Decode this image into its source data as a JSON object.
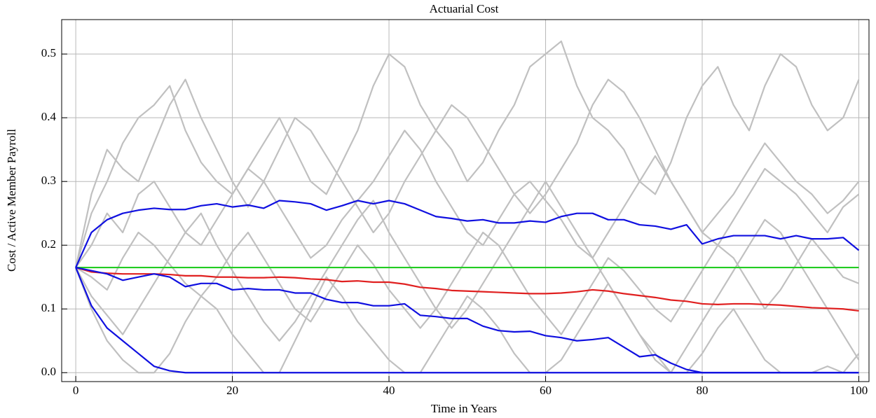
{
  "chart_data": {
    "type": "line",
    "title": "Actuarial Cost",
    "xlabel": "Time in Years",
    "ylabel": "Cost / Active Member Payroll",
    "grid": true,
    "xlim": [
      -1.8,
      101.3
    ],
    "ylim": [
      -0.014,
      0.554
    ],
    "xticks": [
      0,
      20,
      40,
      60,
      80,
      100
    ],
    "yticks": [
      {
        "value": 0,
        "label": "0.0"
      },
      0.1,
      0.2,
      0.3,
      0.4,
      0.5
    ],
    "x": [
      0,
      2,
      4,
      6,
      8,
      10,
      12,
      14,
      16,
      18,
      20,
      22,
      24,
      26,
      28,
      30,
      32,
      34,
      36,
      38,
      40,
      42,
      44,
      46,
      48,
      50,
      52,
      54,
      56,
      58,
      60,
      62,
      64,
      66,
      68,
      70,
      72,
      74,
      76,
      78,
      80,
      82,
      84,
      86,
      88,
      90,
      92,
      94,
      96,
      98,
      100
    ],
    "series": [
      {
        "color": "#c0c0c0",
        "values": [
          0.165,
          0.25,
          0.3,
          0.36,
          0.4,
          0.42,
          0.45,
          0.38,
          0.33,
          0.3,
          0.28,
          0.32,
          0.36,
          0.4,
          0.35,
          0.3,
          0.28,
          0.33,
          0.38,
          0.45,
          0.5,
          0.48,
          0.42,
          0.38,
          0.35,
          0.3,
          0.33,
          0.38,
          0.42,
          0.48,
          0.5,
          0.52,
          0.45,
          0.4,
          0.38,
          0.35,
          0.3,
          0.28,
          0.33,
          0.4,
          0.45,
          0.48,
          0.42,
          0.38,
          0.45,
          0.5,
          0.48,
          0.42,
          0.38,
          0.4,
          0.46
        ]
      },
      {
        "color": "#c0c0c0",
        "values": [
          0.165,
          0.1,
          0.05,
          0.02,
          0,
          0,
          0.03,
          0.08,
          0.12,
          0.1,
          0.06,
          0.03,
          0,
          0,
          0.05,
          0.1,
          0.15,
          0.12,
          0.08,
          0.05,
          0.02,
          0,
          0,
          0.04,
          0.08,
          0.12,
          0.1,
          0.07,
          0.03,
          0,
          0,
          0.02,
          0.06,
          0.1,
          0.14,
          0.1,
          0.06,
          0.02,
          0,
          0,
          0.03,
          0.07,
          0.1,
          0.06,
          0.02,
          0,
          0,
          0,
          0.01,
          0,
          0.03
        ]
      },
      {
        "color": "#c0c0c0",
        "values": [
          0.165,
          0.2,
          0.25,
          0.22,
          0.28,
          0.3,
          0.26,
          0.22,
          0.2,
          0.24,
          0.28,
          0.32,
          0.3,
          0.26,
          0.22,
          0.18,
          0.2,
          0.24,
          0.27,
          0.3,
          0.34,
          0.38,
          0.35,
          0.3,
          0.26,
          0.22,
          0.2,
          0.24,
          0.28,
          0.3,
          0.27,
          0.24,
          0.2,
          0.18,
          0.22,
          0.26,
          0.3,
          0.34,
          0.3,
          0.26,
          0.22,
          0.25,
          0.28,
          0.32,
          0.36,
          0.33,
          0.3,
          0.28,
          0.25,
          0.27,
          0.3
        ]
      },
      {
        "color": "#c0c0c0",
        "values": [
          0.165,
          0.15,
          0.13,
          0.18,
          0.22,
          0.2,
          0.17,
          0.14,
          0.12,
          0.15,
          0.19,
          0.22,
          0.18,
          0.14,
          0.1,
          0.08,
          0.12,
          0.16,
          0.2,
          0.17,
          0.13,
          0.1,
          0.07,
          0.1,
          0.14,
          0.18,
          0.22,
          0.2,
          0.16,
          0.12,
          0.09,
          0.06,
          0.1,
          0.14,
          0.18,
          0.16,
          0.13,
          0.1,
          0.08,
          0.12,
          0.16,
          0.2,
          0.18,
          0.14,
          0.1,
          0.13,
          0.17,
          0.21,
          0.18,
          0.15,
          0.14
        ]
      },
      {
        "color": "#c0c0c0",
        "values": [
          0.165,
          0.28,
          0.35,
          0.32,
          0.3,
          0.36,
          0.42,
          0.46,
          0.4,
          0.35,
          0.3,
          0.26,
          0.3,
          0.35,
          0.4,
          0.38,
          0.34,
          0.3,
          0.26,
          0.22,
          0.25,
          0.3,
          0.34,
          0.38,
          0.42,
          0.4,
          0.36,
          0.32,
          0.28,
          0.25,
          0.28,
          0.32,
          0.36,
          0.42,
          0.46,
          0.44,
          0.4,
          0.35,
          0.3,
          0.26,
          0.22,
          0.2,
          0.24,
          0.28,
          0.32,
          0.3,
          0.28,
          0.25,
          0.22,
          0.26,
          0.28
        ]
      },
      {
        "color": "#c0c0c0",
        "values": [
          0.165,
          0.12,
          0.09,
          0.06,
          0.1,
          0.14,
          0.18,
          0.22,
          0.25,
          0.2,
          0.16,
          0.12,
          0.08,
          0.05,
          0.08,
          0.12,
          0.16,
          0.2,
          0.24,
          0.27,
          0.22,
          0.18,
          0.14,
          0.1,
          0.07,
          0.1,
          0.14,
          0.18,
          0.22,
          0.26,
          0.3,
          0.26,
          0.22,
          0.18,
          0.14,
          0.1,
          0.06,
          0.03,
          0,
          0.04,
          0.08,
          0.12,
          0.16,
          0.2,
          0.24,
          0.22,
          0.18,
          0.14,
          0.1,
          0.06,
          0.02
        ]
      },
      {
        "color": "#22cc22",
        "values": [
          0.165,
          0.165,
          0.165,
          0.165,
          0.165,
          0.165,
          0.165,
          0.165,
          0.165,
          0.165,
          0.165,
          0.165,
          0.165,
          0.165,
          0.165,
          0.165,
          0.165,
          0.165,
          0.165,
          0.165,
          0.165,
          0.165,
          0.165,
          0.165,
          0.165,
          0.165,
          0.165,
          0.165,
          0.165,
          0.165,
          0.165,
          0.165,
          0.165,
          0.165,
          0.165,
          0.165,
          0.165,
          0.165,
          0.165,
          0.165,
          0.165,
          0.165,
          0.165,
          0.165,
          0.165,
          0.165,
          0.165,
          0.165,
          0.165,
          0.165,
          0.165
        ]
      },
      {
        "color": "#e02020",
        "values": [
          0.165,
          0.158,
          0.156,
          0.155,
          0.155,
          0.155,
          0.154,
          0.152,
          0.152,
          0.15,
          0.15,
          0.149,
          0.149,
          0.15,
          0.149,
          0.147,
          0.146,
          0.143,
          0.144,
          0.142,
          0.142,
          0.139,
          0.134,
          0.132,
          0.129,
          0.128,
          0.127,
          0.126,
          0.125,
          0.124,
          0.124,
          0.125,
          0.127,
          0.13,
          0.128,
          0.124,
          0.121,
          0.118,
          0.114,
          0.112,
          0.108,
          0.107,
          0.108,
          0.108,
          0.107,
          0.106,
          0.104,
          0.102,
          0.101,
          0.1,
          0.097
        ]
      },
      {
        "color": "#1010e0",
        "values": [
          0.165,
          0.22,
          0.24,
          0.25,
          0.255,
          0.258,
          0.256,
          0.256,
          0.262,
          0.265,
          0.26,
          0.263,
          0.258,
          0.27,
          0.268,
          0.265,
          0.255,
          0.262,
          0.27,
          0.265,
          0.27,
          0.265,
          0.255,
          0.245,
          0.242,
          0.238,
          0.24,
          0.235,
          0.235,
          0.238,
          0.236,
          0.245,
          0.25,
          0.25,
          0.24,
          0.24,
          0.232,
          0.23,
          0.225,
          0.232,
          0.202,
          0.21,
          0.215,
          0.215,
          0.215,
          0.21,
          0.215,
          0.21,
          0.21,
          0.212,
          0.192
        ]
      },
      {
        "color": "#1010e0",
        "values": [
          0.165,
          0.16,
          0.155,
          0.145,
          0.15,
          0.155,
          0.15,
          0.135,
          0.14,
          0.14,
          0.13,
          0.132,
          0.13,
          0.13,
          0.125,
          0.125,
          0.115,
          0.11,
          0.11,
          0.105,
          0.105,
          0.108,
          0.09,
          0.088,
          0.085,
          0.085,
          0.073,
          0.066,
          0.064,
          0.065,
          0.058,
          0.055,
          0.05,
          0.052,
          0.055,
          0.04,
          0.025,
          0.028,
          0.015,
          0.005,
          0,
          0,
          0,
          0,
          0,
          0,
          0,
          0,
          0,
          0,
          0
        ]
      },
      {
        "color": "#1010e0",
        "values": [
          0.165,
          0.105,
          0.07,
          0.05,
          0.03,
          0.01,
          0.003,
          0,
          0,
          0,
          0,
          0,
          0,
          0,
          0,
          0,
          0,
          0,
          0,
          0,
          0,
          0,
          0,
          0,
          0,
          0,
          0,
          0,
          0,
          0,
          0,
          0,
          0,
          0,
          0,
          0,
          0,
          0,
          0,
          0,
          0,
          0,
          0,
          0,
          0,
          0,
          0,
          0,
          0,
          0,
          0
        ]
      }
    ]
  }
}
